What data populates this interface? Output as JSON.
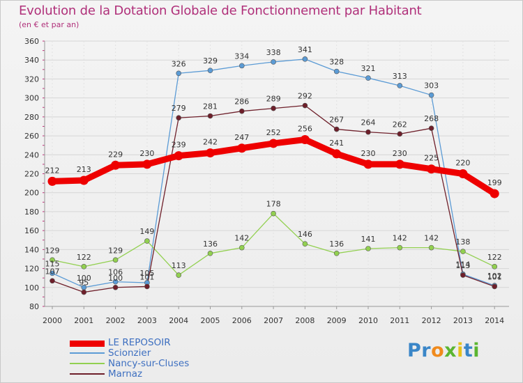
{
  "chart_data": {
    "type": "line",
    "title": "Evolution de la Dotation Globale de Fonctionnement par Habitant",
    "subtitle": "(en € et par an)",
    "categories": [
      "2000",
      "2001",
      "2002",
      "2003",
      "2004",
      "2005",
      "2006",
      "2007",
      "2008",
      "2009",
      "2010",
      "2011",
      "2012",
      "2013",
      "2014"
    ],
    "ylim": [
      80,
      360
    ],
    "yticks": [
      80,
      100,
      120,
      140,
      160,
      180,
      200,
      220,
      240,
      260,
      280,
      300,
      320,
      340,
      360
    ],
    "grid": "horizontal",
    "series": [
      {
        "name": "LE REPOSOIR",
        "color": "#ee0000",
        "values": [
          212,
          213,
          229,
          230,
          239,
          242,
          247,
          252,
          256,
          241,
          230,
          230,
          225,
          220,
          199
        ]
      },
      {
        "name": "Scionzier",
        "color": "#5b9bd5",
        "values": [
          115,
          100,
          106,
          105,
          326,
          329,
          334,
          338,
          341,
          328,
          321,
          313,
          303,
          114,
          102
        ]
      },
      {
        "name": "Nancy-sur-Cluses",
        "color": "#92d050",
        "values": [
          129,
          122,
          129,
          149,
          113,
          136,
          142,
          178,
          146,
          136,
          141,
          142,
          142,
          138,
          122
        ]
      },
      {
        "name": "Marnaz",
        "color": "#6e1f2a",
        "values": [
          107,
          95,
          100,
          101,
          279,
          281,
          286,
          289,
          292,
          267,
          264,
          262,
          268,
          113,
          101
        ]
      }
    ]
  },
  "logo": {
    "p": "Pr",
    "o": "o",
    "x": "x",
    "i": "i",
    "t": "t",
    "i2": "i"
  }
}
